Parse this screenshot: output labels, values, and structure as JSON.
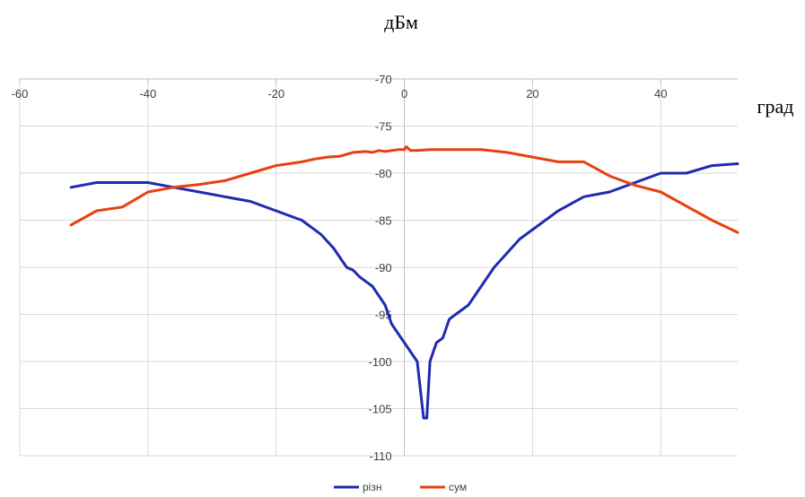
{
  "chart_data": {
    "type": "line",
    "title": "",
    "y_unit_label": "дБм",
    "x_unit_label": "град",
    "xlim": [
      -60,
      52
    ],
    "ylim": [
      -110,
      -70
    ],
    "x_ticks": [
      -60,
      -40,
      -20,
      0,
      20,
      40
    ],
    "x_tick_labels": [
      "-60",
      "-40",
      "-20",
      "0",
      "20",
      "40"
    ],
    "y_ticks": [
      -70,
      -75,
      -80,
      -85,
      -90,
      -95,
      -100,
      -105,
      -110
    ],
    "y_tick_labels": [
      "-70",
      "-75",
      "-80",
      "-85",
      "-90",
      "-95",
      "-100",
      "-105",
      "-110"
    ],
    "grid": true,
    "legend_position": "bottom",
    "series": [
      {
        "name": "різн",
        "color": "#1f2bb0",
        "x": [
          -52,
          -48,
          -44,
          -40,
          -36,
          -32,
          -28,
          -24,
          -20,
          -16,
          -13,
          -11,
          -10,
          -9,
          -8,
          -7,
          -6,
          -5,
          -4,
          -3,
          -2,
          -1,
          0,
          1,
          2,
          3,
          3.5,
          4,
          5,
          6,
          7,
          8,
          10,
          12,
          14,
          18,
          24,
          28,
          32,
          36,
          40,
          44,
          48,
          52
        ],
        "y": [
          -81.5,
          -81,
          -81,
          -81,
          -81.5,
          -82,
          -82.5,
          -83,
          -84,
          -85,
          -86.5,
          -88,
          -89,
          -90,
          -90.3,
          -91,
          -91.5,
          -92,
          -93,
          -94,
          -96,
          -97,
          -98,
          -99,
          -100,
          -106,
          -106,
          -100,
          -98,
          -97.5,
          -95.5,
          -95,
          -94,
          -92,
          -90,
          -87,
          -84,
          -82.5,
          -82,
          -81,
          -80,
          -80,
          -79.2,
          -79
        ]
      },
      {
        "name": "сум",
        "color": "#e84010",
        "x": [
          -52,
          -48,
          -44,
          -40,
          -36,
          -32,
          -28,
          -24,
          -20,
          -18,
          -16,
          -14,
          -12,
          -10,
          -8,
          -6,
          -5,
          -4,
          -3,
          -2,
          -1,
          0,
          0.3,
          1,
          2,
          4,
          6,
          8,
          12,
          16,
          20,
          24,
          28,
          32,
          36,
          40,
          44,
          48,
          52
        ],
        "y": [
          -85.5,
          -84,
          -83.6,
          -82,
          -81.5,
          -81.2,
          -80.8,
          -80,
          -79.2,
          -79,
          -78.8,
          -78.5,
          -78.3,
          -78.2,
          -77.8,
          -77.7,
          -77.8,
          -77.6,
          -77.7,
          -77.6,
          -77.5,
          -77.5,
          -77.2,
          -77.6,
          -77.6,
          -77.5,
          -77.5,
          -77.5,
          -77.5,
          -77.8,
          -78.3,
          -78.8,
          -78.8,
          -80.3,
          -81.3,
          -82,
          -83.5,
          -85,
          -86.3
        ]
      }
    ]
  }
}
